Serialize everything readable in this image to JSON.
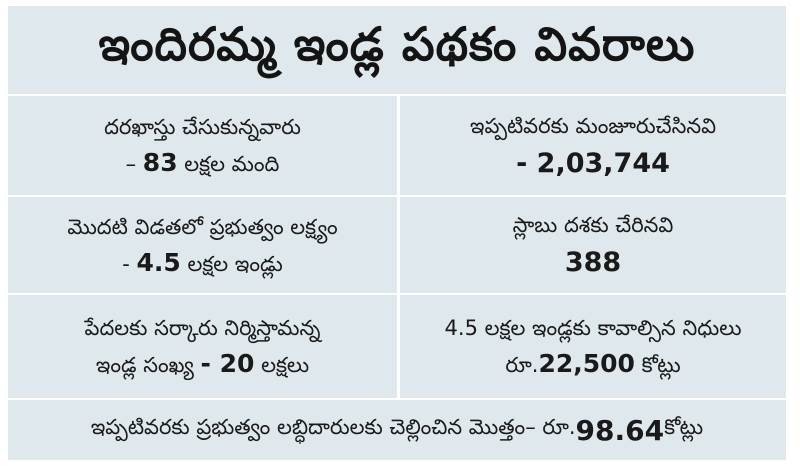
{
  "title": "ఇందిరమ్మ ఇండ్ల పథకం వివరాలు",
  "rows": [
    {
      "left": {
        "line1": "దరఖాస్తు చేసుకున్నవారు",
        "line2_prefix": "– ",
        "line2_number": "83",
        "line2_suffix": " లక్షల మంది"
      },
      "right": {
        "line1": "ఇప్పటివరకు మంజూరుచేసినవి",
        "line2_number": "- 2,03,744"
      }
    },
    {
      "left": {
        "line1": "మొదటి విడతలో ప్రభుత్వం లక్ష్యం",
        "line2_prefix": "- ",
        "line2_number": "4.5",
        "line2_suffix": " లక్షల ఇండ్లు"
      },
      "right": {
        "line1": "స్లాబు దశకు చేరినవి",
        "line2_number": "388"
      }
    },
    {
      "left": {
        "line1": "పేదలకు సర్కారు నిర్మిస్తామన్న",
        "line2_prefix": "ఇండ్ల సంఖ్య ",
        "line2_number": "- 20",
        "line2_suffix": " లక్షలు"
      },
      "right": {
        "line1": "4.5 లక్షల ఇండ్లకు కావాల్సిన నిధులు",
        "line2_prefix": "రూ.",
        "line2_number": "22,500",
        "line2_suffix": " కోట్లు"
      }
    }
  ],
  "footer": {
    "prefix": "ఇప్పటివరకు ప్రభుత్వం లబ్ధిదారులకు చెల్లించిన మొత్తం– రూ.",
    "number": "98.64",
    "suffix": " కోట్లు"
  },
  "colors": {
    "background": "#dfe8ec",
    "divider": "#ffffff",
    "text": "#1a1a1a"
  }
}
